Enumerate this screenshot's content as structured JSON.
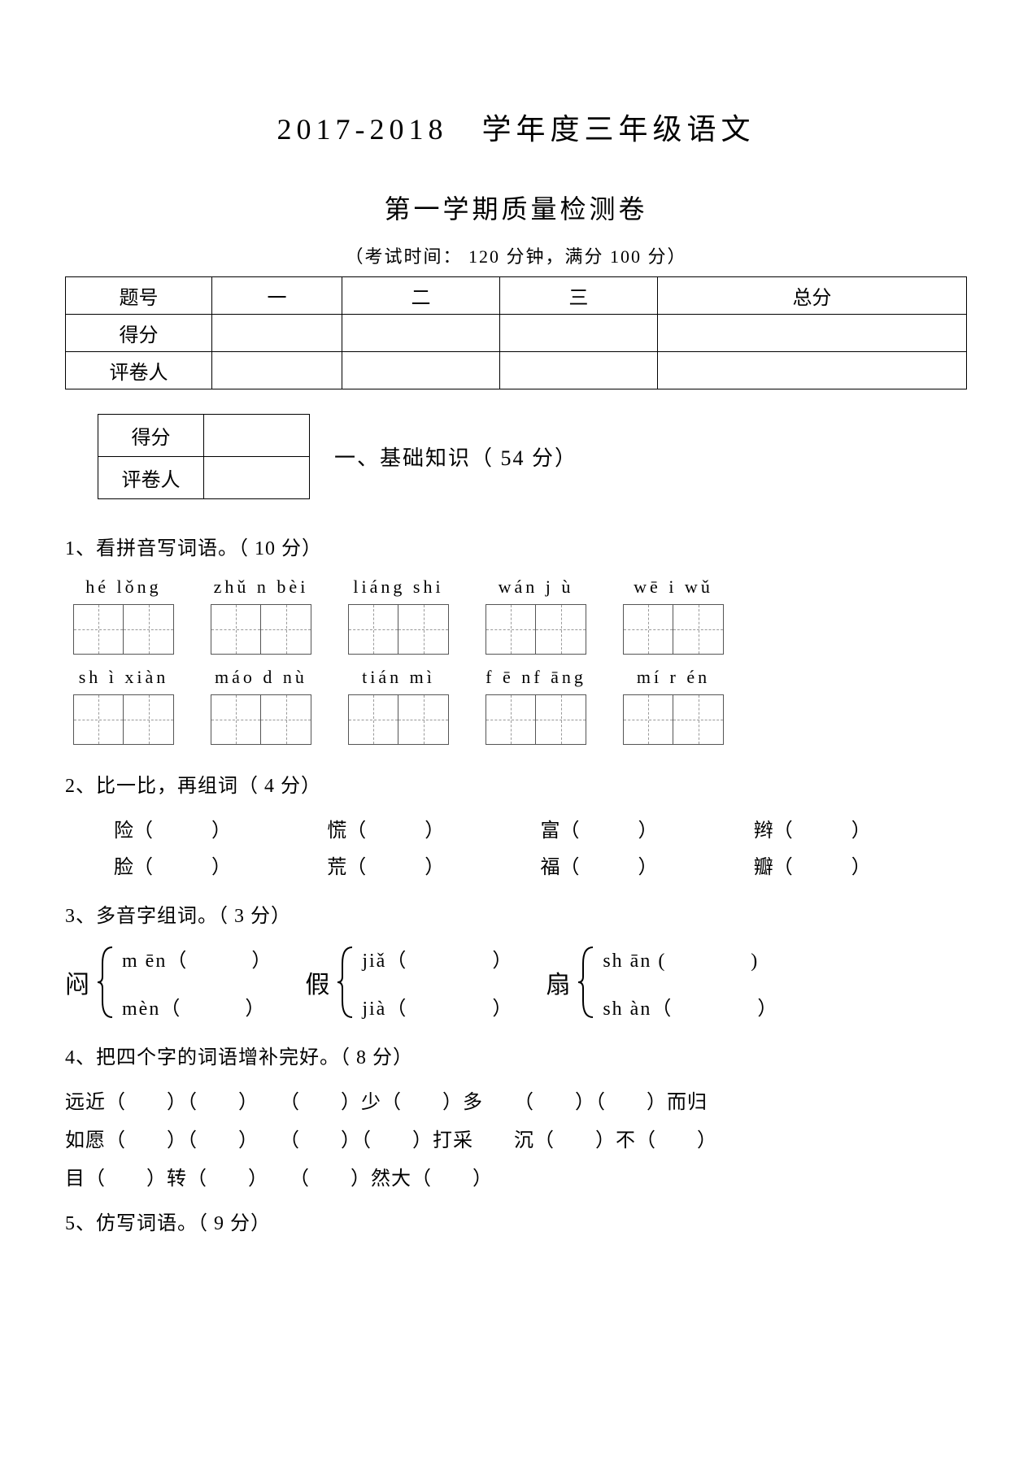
{
  "header": {
    "main_title": "2017-2018　学年度三年级语文",
    "sub_title": "第一学期质量检测卷",
    "exam_info": "（考试时间： 120 分钟，满分  100 分）"
  },
  "score_table": {
    "rows": [
      "题号",
      "得分",
      "评卷人"
    ],
    "cols": [
      "一",
      "二",
      "三",
      "总分"
    ]
  },
  "section1": {
    "small_table_rows": [
      "得分",
      "评卷人"
    ],
    "title": "一、基础知识（ 54 分）"
  },
  "q1": {
    "title": "1、看拼音写词语。（ 10 分）",
    "row1": [
      {
        "py": "hé  lǒng",
        "n": 2
      },
      {
        "py": "zhǔ n bèi",
        "n": 2
      },
      {
        "py": "liáng shi",
        "n": 2
      },
      {
        "py": "wán  j ù",
        "n": 2
      },
      {
        "py": "wē i  wǔ",
        "n": 2
      }
    ],
    "row2": [
      {
        "py": "sh ì xiàn",
        "n": 2
      },
      {
        "py": "máo d nù",
        "n": 2
      },
      {
        "py": "tián  mì",
        "n": 2
      },
      {
        "py": "f ē nf āng",
        "n": 2
      },
      {
        "py": "mí r én",
        "n": 2
      }
    ]
  },
  "q2": {
    "title": "2、比一比，再组词（ 4 分）",
    "row1": [
      "险（　　　）",
      "慌（　　　）",
      "富（　　　）",
      "辫（　　　）"
    ],
    "row2": [
      "脸（　　　）",
      "荒（　　　）",
      "福（　　　）",
      "瓣（　　　）"
    ]
  },
  "q3": {
    "title": "3、多音字组词。（ 3 分）",
    "groups": [
      {
        "char": "闷",
        "o1": "m ēn（　　　）",
        "o2": "mèn（　　　）"
      },
      {
        "char": "假",
        "o1": "jiǎ（　　　　）",
        "o2": "jià（　　　　）"
      },
      {
        "char": "扇",
        "o1": "sh ān (　　　　)",
        "o2": "sh àn（　　　　）"
      }
    ]
  },
  "q4": {
    "title": "4、把四个字的词语增补完好。（ 8 分）",
    "line1": "远近（　　）（　　）　　（　　）少（　　）多　　（　　）（　　）而归",
    "line2": "如愿（　　）（　　）　　（　　）（　　）打采　　沉（　　）不（　　）",
    "line3": "目（　　）转（　　）　　（　　）然大（　　）"
  },
  "q5": {
    "title": "5、仿写词语。（ 9 分）"
  }
}
